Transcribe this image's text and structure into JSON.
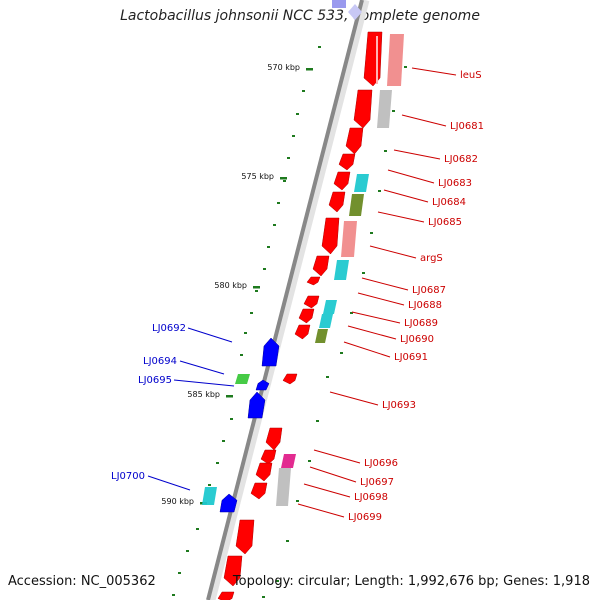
{
  "title": "Lactobacillus johnsonii NCC 533, complete genome",
  "footer": {
    "accession": "Accession: NC_005362",
    "summary": "Topology: circular; Length: 1,992,676 bp; Genes: 1,918"
  },
  "colors": {
    "forward_gene": "#ff0000",
    "reverse_gene": "#0000ff",
    "forward_label": "#cc0000",
    "reverse_label": "#0000cc",
    "tick": "#1e7a1e",
    "backbone": "#888888",
    "pink": "#f08a8a",
    "gray": "#bdbdbd",
    "cyan": "#1fc8cf",
    "olive": "#6a8a23",
    "green": "#3cc83c",
    "magenta": "#e0208a"
  },
  "scale_ticks": [
    "570 kbp",
    "575 kbp",
    "580 kbp",
    "585 kbp",
    "590 kbp"
  ],
  "genes_forward": [
    "leuS",
    "LJ0681",
    "LJ0682",
    "LJ0683",
    "LJ0684",
    "LJ0685",
    "argS",
    "LJ0687",
    "LJ0688",
    "LJ0689",
    "LJ0690",
    "LJ0691",
    "LJ0693",
    "LJ0696",
    "LJ0697",
    "LJ0698",
    "LJ0699"
  ],
  "genes_reverse": [
    "LJ0692",
    "LJ0694",
    "LJ0695",
    "LJ0700"
  ]
}
